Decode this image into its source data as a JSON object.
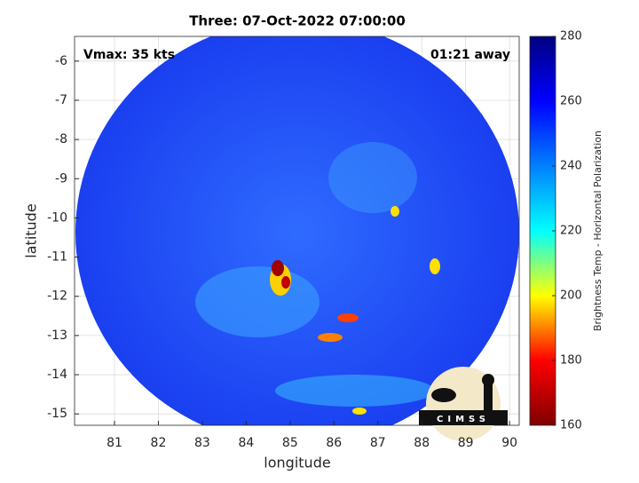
{
  "chart_data": {
    "type": "image",
    "title": "Three: 07-Oct-2022 07:00:00",
    "annotations": [
      "Vmax: 35 kts",
      "01:21 away"
    ],
    "xlabel": "longitude",
    "ylabel": "latitude",
    "xlim": [
      80.09,
      90.22
    ],
    "xticks": [
      81,
      82,
      83,
      84,
      85,
      86,
      87,
      88,
      89,
      90
    ],
    "ylim": [
      -15.29,
      -5.37
    ],
    "yticks": [
      -6,
      -7,
      -8,
      -9,
      -10,
      -11,
      -12,
      -13,
      -14,
      -15
    ],
    "grid": true,
    "colorbar": {
      "label": "Brightness Temp - Horizontal Polarization",
      "clim": [
        160,
        280
      ],
      "ticks": [
        160,
        180,
        200,
        220,
        240,
        260,
        280
      ],
      "colors": [
        "#800000",
        "#ff0000",
        "#ffff00",
        "#00ffff",
        "#0080ff",
        "#0000ff",
        "#000080"
      ]
    },
    "logo": "CIMSS"
  }
}
